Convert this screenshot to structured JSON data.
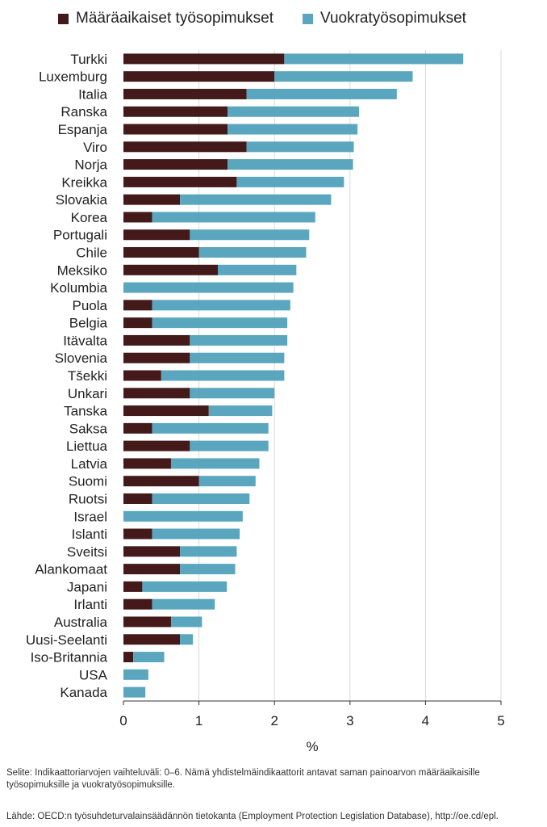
{
  "legend": {
    "fixed_term": "Määräaikaiset työsopimukset",
    "temp_agency": "Vuokratyösopimukset"
  },
  "chart_data": {
    "type": "bar",
    "orientation": "horizontal",
    "stacked": true,
    "categories": [
      "Turkki",
      "Luxemburg",
      "Italia",
      "Ranska",
      "Espanja",
      "Viro",
      "Norja",
      "Kreikka",
      "Slovakia",
      "Korea",
      "Portugali",
      "Chile",
      "Meksiko",
      "Kolumbia",
      "Puola",
      "Belgia",
      "Itävalta",
      "Slovenia",
      "Tšekki",
      "Unkari",
      "Tanska",
      "Saksa",
      "Liettua",
      "Latvia",
      "Suomi",
      "Ruotsi",
      "Israel",
      "Islanti",
      "Sveitsi",
      "Alankomaat",
      "Japani",
      "Irlanti",
      "Australia",
      "Uusi-Seelanti",
      "Iso-Britannia",
      "USA",
      "Kanada"
    ],
    "series": [
      {
        "name": "Määräaikaiset työsopimukset",
        "color": "#43191a",
        "values": [
          2.13,
          2.0,
          1.63,
          1.38,
          1.38,
          1.63,
          1.38,
          1.5,
          0.75,
          0.38,
          0.88,
          1.0,
          1.25,
          0.0,
          0.38,
          0.38,
          0.88,
          0.88,
          0.5,
          0.88,
          1.13,
          0.38,
          0.88,
          0.63,
          1.0,
          0.38,
          0.0,
          0.38,
          0.75,
          0.75,
          0.25,
          0.38,
          0.63,
          0.75,
          0.13,
          0.0,
          0.0
        ]
      },
      {
        "name": "Vuokratyösopimukset",
        "color": "#5ba6bf",
        "values": [
          2.37,
          1.83,
          1.99,
          1.74,
          1.72,
          1.42,
          1.66,
          1.42,
          2.0,
          2.16,
          1.58,
          1.42,
          1.04,
          2.25,
          1.83,
          1.79,
          1.29,
          1.25,
          1.63,
          1.12,
          0.84,
          1.54,
          1.04,
          1.17,
          0.75,
          1.29,
          1.58,
          1.16,
          0.75,
          0.73,
          1.12,
          0.83,
          0.41,
          0.17,
          0.41,
          0.33,
          0.29
        ]
      }
    ],
    "xlim": [
      0,
      5
    ],
    "xticks": [
      "0",
      "1",
      "2",
      "3",
      "4",
      "5"
    ],
    "xlabel": "%",
    "grid": true,
    "legend_position": "top"
  },
  "footer": {
    "note": "Selite: Indikaattoriarvojen vaihteluväli: 0–6. Nämä yhdistelmäindikaattorit antavat saman painoarvon määräaikaisille työsopimuksille ja vuokratyösopimuksille.",
    "source": "Lähde: OECD:n työsuhdeturvalainsäädännön tietokanta (Employment Protection Legislation Database), http://oe.cd/epl."
  }
}
